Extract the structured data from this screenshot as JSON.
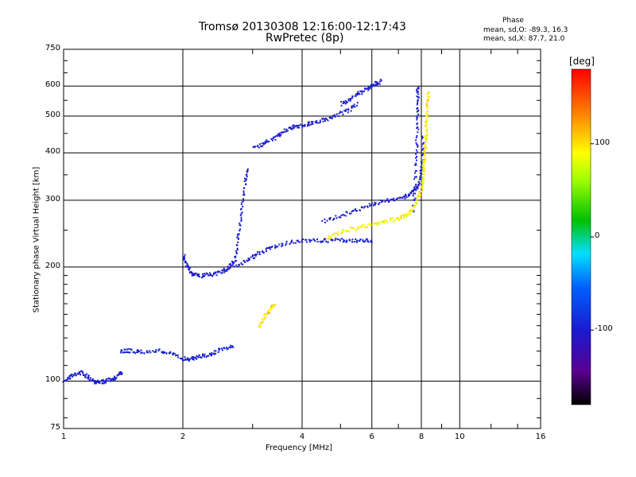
{
  "chart_data": {
    "type": "scatter",
    "title": "Tromsø 20130308 12:16:00-12:17:43",
    "subtitle": "RwPretec (8p)",
    "xlabel": "Frequency [MHz]",
    "ylabel": "Stationary phase Virtual Height [km]",
    "x_scale": "log",
    "y_scale": "log",
    "xlim": [
      1,
      16
    ],
    "ylim": [
      75,
      750
    ],
    "x_ticks": [
      1,
      2,
      4,
      6,
      8,
      10,
      16
    ],
    "y_ticks": [
      75,
      100,
      200,
      300,
      400,
      500,
      600,
      750
    ],
    "grid": true,
    "annotation": {
      "title": "Phase",
      "line_o": "mean, sd,O: -89.3, 16.3",
      "line_x": "mean, sd,X:  87.7, 21.0"
    },
    "colorbar": {
      "label": "[deg]",
      "range": [
        -180,
        180
      ],
      "ticks": [
        100,
        0,
        -100
      ],
      "colormap": "rainbow"
    },
    "traces": [
      {
        "x": [
          1.0,
          1.05,
          1.1,
          1.15,
          1.2,
          1.25,
          1.3,
          1.35,
          1.4
        ],
        "y": [
          101,
          104,
          106,
          103,
          100,
          100,
          101,
          103,
          106
        ],
        "phase": -100
      },
      {
        "x": [
          1.38,
          1.45,
          1.55,
          1.7,
          1.85,
          2.0,
          2.1,
          2.2,
          2.35,
          2.5,
          2.7
        ],
        "y": [
          120,
          121,
          120,
          121,
          119,
          115,
          115,
          117,
          118,
          122,
          125
        ],
        "phase": -95
      },
      {
        "x": [
          2.0,
          2.05,
          2.1,
          2.2,
          2.35,
          2.5,
          2.6,
          2.7,
          2.75,
          2.8,
          2.85,
          2.9
        ],
        "y": [
          215,
          200,
          193,
          190,
          192,
          195,
          200,
          210,
          240,
          280,
          330,
          370
        ],
        "phase": -100
      },
      {
        "x": [
          2.7,
          2.9,
          3.1,
          3.3,
          3.6,
          4.0,
          4.4,
          4.8,
          5.2,
          5.6,
          6.0
        ],
        "y": [
          200,
          210,
          218,
          225,
          232,
          235,
          236,
          236,
          236,
          236,
          236
        ],
        "phase": -100
      },
      {
        "x": [
          3.0,
          3.2,
          3.4,
          3.6,
          3.8,
          4.0,
          4.2,
          4.5,
          4.8,
          5.2,
          5.5
        ],
        "y": [
          415,
          425,
          440,
          460,
          470,
          475,
          482,
          490,
          500,
          520,
          540
        ],
        "phase": -100
      },
      {
        "x": [
          5.0,
          5.3,
          5.6,
          5.9,
          6.1,
          6.3
        ],
        "y": [
          540,
          560,
          580,
          595,
          610,
          620
        ],
        "phase": -100
      },
      {
        "x": [
          4.5,
          5.0,
          5.5,
          6.0,
          6.5,
          7.0,
          7.4,
          7.7,
          7.9,
          8.0,
          8.05
        ],
        "y": [
          265,
          275,
          285,
          295,
          300,
          305,
          310,
          320,
          340,
          380,
          450
        ],
        "phase": -100
      },
      {
        "x": [
          7.6,
          7.7,
          7.75,
          7.8,
          7.8,
          7.8
        ],
        "y": [
          280,
          350,
          420,
          500,
          560,
          600
        ],
        "phase": -100
      },
      {
        "x": [
          4.6,
          5.0,
          5.5,
          6.0,
          6.5,
          7.0,
          7.3,
          7.6,
          7.8,
          8.0,
          8.1,
          8.2
        ],
        "y": [
          240,
          248,
          255,
          260,
          265,
          270,
          275,
          285,
          300,
          330,
          380,
          450
        ],
        "phase": 90
      },
      {
        "x": [
          8.0,
          8.1,
          8.15,
          8.2,
          8.25,
          8.3
        ],
        "y": [
          320,
          380,
          430,
          480,
          530,
          580
        ],
        "phase": 95
      },
      {
        "x": [
          3.1,
          3.2,
          3.3,
          3.4
        ],
        "y": [
          140,
          148,
          155,
          160
        ],
        "phase": 100
      }
    ]
  }
}
